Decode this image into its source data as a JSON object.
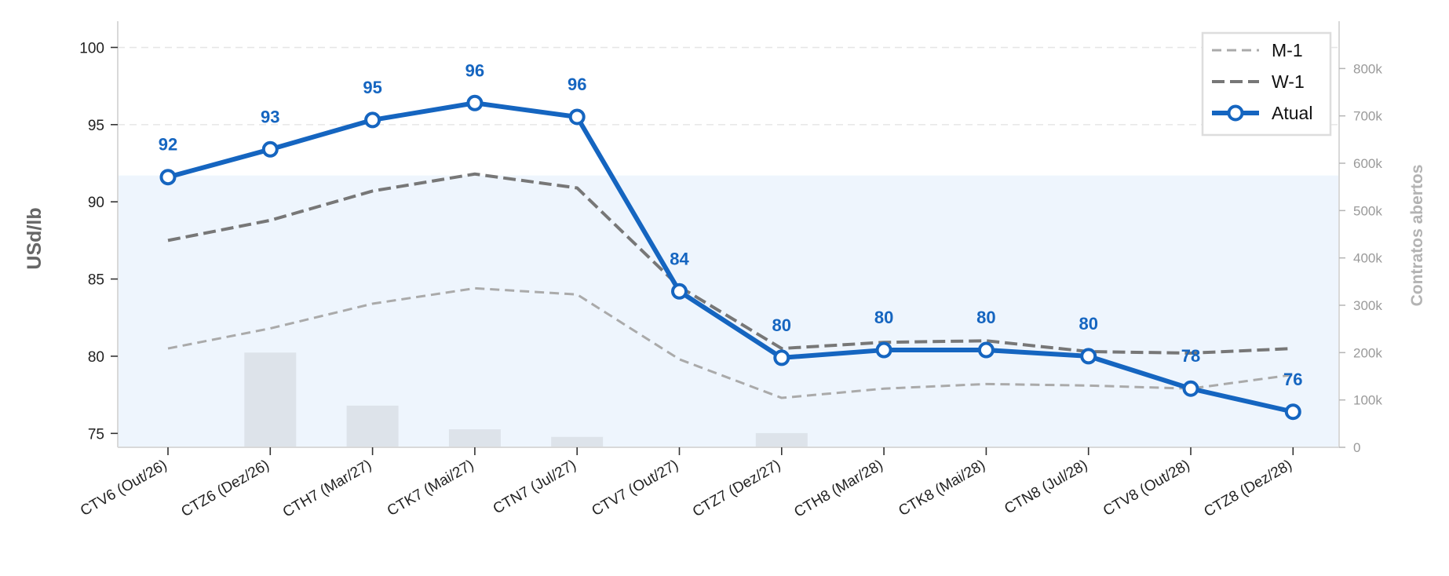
{
  "chart_data": {
    "type": "line",
    "categories": [
      "CTV6 (Out/26)",
      "CTZ6 (Dez/26)",
      "CTH7 (Mar/27)",
      "CTK7 (Mai/27)",
      "CTN7 (Jul/27)",
      "CTV7 (Out/27)",
      "CTZ7 (Dez/27)",
      "CTH8 (Mar/28)",
      "CTK8 (Mai/28)",
      "CTN8 (Jul/28)",
      "CTV8 (Out/28)",
      "CTZ8 (Dez/28)"
    ],
    "ylabel": "USd/lb",
    "y2label": "Contratos abertos",
    "ylim": [
      74.1,
      101.7
    ],
    "y2lim": [
      0,
      900000
    ],
    "yticks": [
      "75",
      "80",
      "85",
      "90",
      "95",
      "100"
    ],
    "y2ticks": [
      "0",
      "100k",
      "200k",
      "300k",
      "400k",
      "500k",
      "600k",
      "700k",
      "800k"
    ],
    "grid": true,
    "legend_position": "top-right",
    "series": [
      {
        "name": "M-1",
        "style": "dashed",
        "color": "#aaaaaa",
        "values": [
          80.5,
          81.8,
          83.4,
          84.4,
          84.0,
          79.8,
          77.3,
          77.9,
          78.2,
          78.1,
          77.9,
          78.8
        ]
      },
      {
        "name": "W-1",
        "style": "dashed",
        "color": "#777777",
        "values": [
          87.5,
          88.8,
          90.7,
          91.8,
          90.9,
          84.5,
          80.5,
          80.9,
          81.0,
          80.3,
          80.2,
          80.5
        ]
      },
      {
        "name": "Atual",
        "style": "solid-markers",
        "color": "#1565c0",
        "values": [
          91.6,
          93.4,
          95.3,
          96.4,
          95.5,
          84.2,
          79.9,
          80.4,
          80.4,
          80.0,
          77.9,
          76.4
        ]
      }
    ],
    "data_labels": [
      "92",
      "93",
      "95",
      "96",
      "96",
      "84",
      "80",
      "80",
      "80",
      "80",
      "78",
      "76"
    ],
    "open_interest": [
      0,
      200000,
      88000,
      38000,
      22000,
      0,
      30000,
      0,
      0,
      0,
      0,
      0
    ],
    "area_level": 91.7,
    "area_level_end": 76.5,
    "colors": {
      "bar": "#dde3ea",
      "area": "#eef5fd",
      "grid": "#e6e6e6",
      "axis": "#d9d9d9"
    }
  }
}
